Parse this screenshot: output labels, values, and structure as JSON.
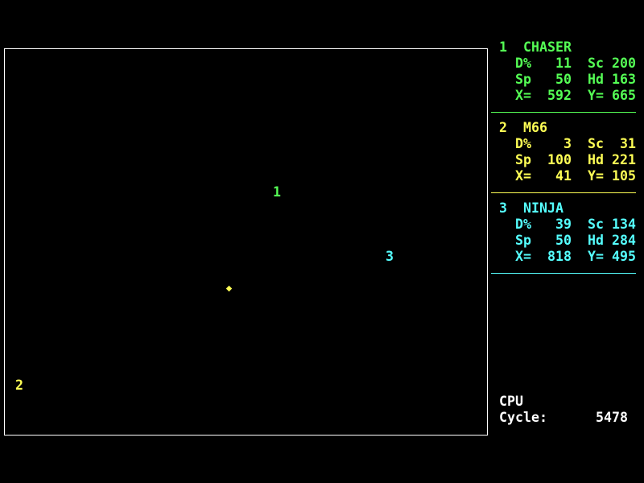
{
  "robots": [
    {
      "num": "1",
      "name": "CHASER",
      "color": "#55ff55",
      "damage": "11",
      "score": "200",
      "speed": "50",
      "heading": "163",
      "x": "592",
      "y": "665"
    },
    {
      "num": "2",
      "name": "M66",
      "color": "#ffff55",
      "damage": "3",
      "score": "31",
      "speed": "100",
      "heading": "221",
      "x": "41",
      "y": "105"
    },
    {
      "num": "3",
      "name": "NINJA",
      "color": "#55ffff",
      "damage": "39",
      "score": "134",
      "speed": "50",
      "heading": "284",
      "x": "818",
      "y": "495"
    }
  ],
  "labels": {
    "damage": "D%",
    "score": "Sc",
    "speed": "Sp",
    "heading": "Hd",
    "x": "X=",
    "y": "Y="
  },
  "cpu": {
    "title": "CPU",
    "cycle_label": "Cycle:",
    "cycle": "5478"
  },
  "missile_color": "#ffff55"
}
